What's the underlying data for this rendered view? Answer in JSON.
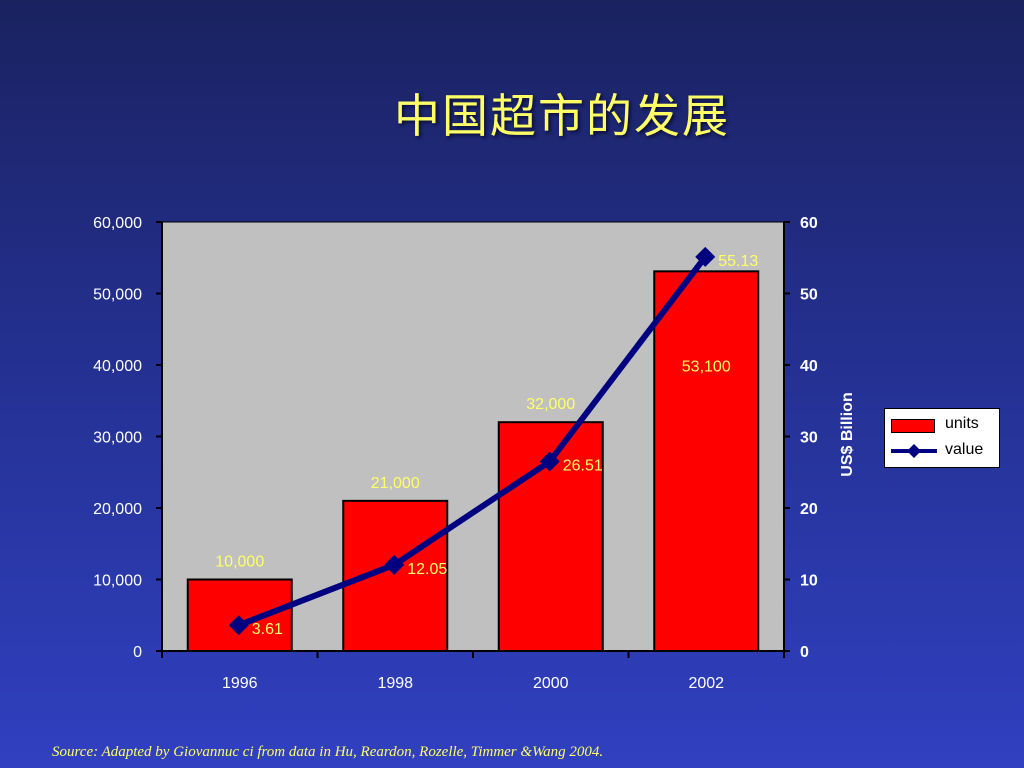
{
  "title": "中国超市的发展",
  "source": "Source: Adapted  by Giovannuc ci from data in Hu, Reardon, Rozelle, Timmer &Wang 2004.",
  "colors": {
    "bar": "#ff0000",
    "line": "#000080",
    "plot_bg": "#c0c0c0",
    "bar_label": "#ffff66",
    "line_label": "#ffff66",
    "bar_label_inside": "#ffff66",
    "text": "#ffffff"
  },
  "chart_data": {
    "type": "bar+line",
    "categories": [
      "1996",
      "1998",
      "2000",
      "2002"
    ],
    "series": [
      {
        "name": "units",
        "type": "bar",
        "axis": "left",
        "values": [
          10000,
          21000,
          32000,
          53100
        ],
        "labels": [
          "10,000",
          "21,000",
          "32,000",
          "53,100"
        ]
      },
      {
        "name": "value",
        "type": "line",
        "axis": "right",
        "values": [
          3.61,
          12.05,
          26.51,
          55.13
        ],
        "labels": [
          "3.61",
          "12.05",
          "26.51",
          "55.13"
        ]
      }
    ],
    "left_axis": {
      "min": 0,
      "max": 60000,
      "ticks": [
        "0",
        "10,000",
        "20,000",
        "30,000",
        "40,000",
        "50,000",
        "60,000"
      ]
    },
    "right_axis": {
      "min": 0,
      "max": 60,
      "label": "US$ Billion",
      "ticks": [
        "0",
        "10",
        "20",
        "30",
        "40",
        "50",
        "60"
      ]
    },
    "xlabel": "",
    "ylabel": "",
    "grid": false,
    "legend_position": "right"
  }
}
